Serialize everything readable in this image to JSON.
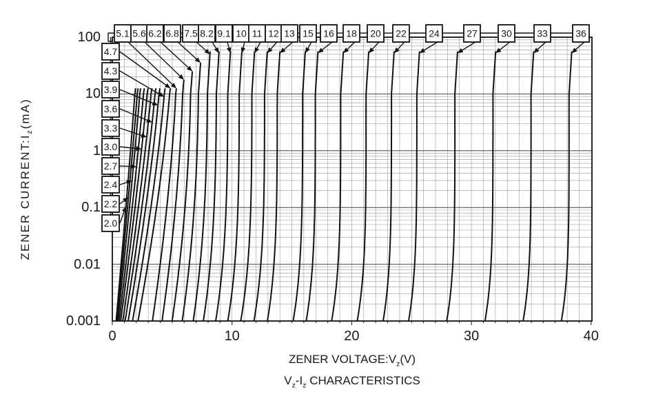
{
  "title_parts": [
    {
      "t": "V"
    },
    {
      "t": "z",
      "sub": true
    },
    {
      "t": "-I"
    },
    {
      "t": "z",
      "sub": true
    },
    {
      "t": " CHARACTERISTICS"
    }
  ],
  "title_plain": "Vz-Iz CHARACTERISTICS",
  "chart_data": {
    "type": "line",
    "xlabel_parts": [
      {
        "t": "ZENER VOLTAGE:V"
      },
      {
        "t": "z",
        "sub": true
      },
      {
        "t": "(V)"
      }
    ],
    "xlabel_plain": "ZENER VOLTAGE:Vz(V)",
    "ylabel_parts": [
      {
        "t": "ZENER CURRENT:I"
      },
      {
        "t": "z",
        "sub": true
      },
      {
        "t": "(mA)"
      }
    ],
    "ylabel_plain": "ZENER CURRENT:Iz(mA)",
    "x_ticks": [
      "0",
      "10",
      "20",
      "30",
      "40"
    ],
    "x_tick_values": [
      0,
      10,
      20,
      30,
      40
    ],
    "y_ticks": [
      "100",
      "10",
      "1",
      "0.1",
      "0.01",
      "0.001"
    ],
    "y_tick_values": [
      100,
      10,
      1,
      0.1,
      0.01,
      0.001
    ],
    "x_range_V": [
      0,
      40
    ],
    "y_range_mA": [
      0.001,
      100
    ],
    "y_scale": "log",
    "grid": "on",
    "series_note": "Each curve is the reverse V-I characteristic of one zener voltage rating; vz = nominal zener voltage (V), vmin_frac = fraction of vz reached at 1 uA, knee = knee sharpness exponent, tmax = log10 of max plotted current (mA), side/pos = callout label box position (px), at = log10 current (mA) where the callout arrow touches the curve",
    "series": [
      {
        "label": "2.0",
        "vz": 2.0,
        "vmin_frac": 0.15,
        "knee": 1.1,
        "tmax": 1.12,
        "side": "left",
        "pos": 324,
        "at": -0.98
      },
      {
        "label": "2.2",
        "vz": 2.2,
        "vmin_frac": 0.16,
        "knee": 1.12,
        "tmax": 1.12,
        "side": "left",
        "pos": 296,
        "at": -0.82
      },
      {
        "label": "2.4",
        "vz": 2.4,
        "vmin_frac": 0.18,
        "knee": 1.15,
        "tmax": 1.12,
        "side": "left",
        "pos": 268,
        "at": -0.53
      },
      {
        "label": "2.7",
        "vz": 2.7,
        "vmin_frac": 0.2,
        "knee": 1.18,
        "tmax": 1.12,
        "side": "left",
        "pos": 241,
        "at": -0.28
      },
      {
        "label": "3.0",
        "vz": 3.0,
        "vmin_frac": 0.22,
        "knee": 1.2,
        "tmax": 1.12,
        "side": "left",
        "pos": 213,
        "at": 0.03
      },
      {
        "label": "3.3",
        "vz": 3.3,
        "vmin_frac": 0.25,
        "knee": 1.25,
        "tmax": 1.12,
        "side": "left",
        "pos": 186,
        "at": 0.24
      },
      {
        "label": "3.6",
        "vz": 3.6,
        "vmin_frac": 0.28,
        "knee": 1.3,
        "tmax": 1.12,
        "side": "left",
        "pos": 158,
        "at": 0.5
      },
      {
        "label": "3.9",
        "vz": 3.9,
        "vmin_frac": 0.32,
        "knee": 1.35,
        "tmax": 1.12,
        "side": "left",
        "pos": 130,
        "at": 0.8
      },
      {
        "label": "4.3",
        "vz": 4.3,
        "vmin_frac": 0.37,
        "knee": 1.4,
        "tmax": 1.12,
        "side": "left",
        "pos": 103,
        "at": 0.95
      },
      {
        "label": "4.7",
        "vz": 4.7,
        "vmin_frac": 0.43,
        "knee": 1.45,
        "tmax": 1.12,
        "side": "left",
        "pos": 75,
        "at": 1.1
      },
      {
        "label": "5.1",
        "vz": 5.1,
        "vmin_frac": 0.62,
        "knee": 1.6,
        "tmax": 1.14,
        "side": "top",
        "pos": 178,
        "at": 1.1
      },
      {
        "label": "5.6",
        "vz": 5.6,
        "vmin_frac": 0.7,
        "knee": 1.8,
        "tmax": 1.28,
        "side": "top",
        "pos": 202,
        "at": 1.25
      },
      {
        "label": "6.2",
        "vz": 6.2,
        "vmin_frac": 0.76,
        "knee": 2.1,
        "tmax": 1.43,
        "side": "top",
        "pos": 225,
        "at": 1.4
      },
      {
        "label": "6.8",
        "vz": 6.8,
        "vmin_frac": 0.81,
        "knee": 2.4,
        "tmax": 1.58,
        "side": "top",
        "pos": 250,
        "at": 1.55
      },
      {
        "label": "7.5",
        "vz": 7.5,
        "vmin_frac": 0.85,
        "knee": 2.8,
        "tmax": 1.75,
        "side": "top",
        "pos": 277,
        "at": 1.7
      },
      {
        "label": "8.2",
        "vz": 8.2,
        "vmin_frac": 0.875,
        "knee": 3.2,
        "tmax": 1.75,
        "side": "top",
        "pos": 300,
        "at": 1.72
      },
      {
        "label": "9.1",
        "vz": 9.1,
        "vmin_frac": 0.895,
        "knee": 3.6,
        "tmax": 1.75,
        "side": "top",
        "pos": 325,
        "at": 1.72
      },
      {
        "label": "10",
        "vz": 10,
        "vmin_frac": 0.91,
        "knee": 4.0,
        "tmax": 1.75,
        "side": "top",
        "pos": 350,
        "at": 1.72
      },
      {
        "label": "11",
        "vz": 11,
        "vmin_frac": 0.92,
        "knee": 4.2,
        "tmax": 1.75,
        "side": "top",
        "pos": 373,
        "at": 1.72
      },
      {
        "label": "12",
        "vz": 12,
        "vmin_frac": 0.93,
        "knee": 4.4,
        "tmax": 1.75,
        "side": "top",
        "pos": 397,
        "at": 1.72
      },
      {
        "label": "13",
        "vz": 13,
        "vmin_frac": 0.94,
        "knee": 4.6,
        "tmax": 1.75,
        "side": "top",
        "pos": 420,
        "at": 1.72
      },
      {
        "label": "15",
        "vz": 15,
        "vmin_frac": 0.95,
        "knee": 4.9,
        "tmax": 1.75,
        "side": "top",
        "pos": 447,
        "at": 1.72
      },
      {
        "label": "16",
        "vz": 16,
        "vmin_frac": 0.955,
        "knee": 5.0,
        "tmax": 1.75,
        "side": "top",
        "pos": 477,
        "at": 1.72
      },
      {
        "label": "18",
        "vz": 18,
        "vmin_frac": 0.96,
        "knee": 5.2,
        "tmax": 1.75,
        "side": "top",
        "pos": 510,
        "at": 1.72
      },
      {
        "label": "20",
        "vz": 20,
        "vmin_frac": 0.965,
        "knee": 5.4,
        "tmax": 1.75,
        "side": "top",
        "pos": 545,
        "at": 1.72
      },
      {
        "label": "22",
        "vz": 22,
        "vmin_frac": 0.97,
        "knee": 5.5,
        "tmax": 1.75,
        "side": "top",
        "pos": 582,
        "at": 1.72
      },
      {
        "label": "24",
        "vz": 24,
        "vmin_frac": 0.973,
        "knee": 5.6,
        "tmax": 1.75,
        "side": "top",
        "pos": 630,
        "at": 1.72
      },
      {
        "label": "27",
        "vz": 27,
        "vmin_frac": 0.976,
        "knee": 5.8,
        "tmax": 1.75,
        "side": "top",
        "pos": 685,
        "at": 1.72
      },
      {
        "label": "30",
        "vz": 30,
        "vmin_frac": 0.979,
        "knee": 5.9,
        "tmax": 1.75,
        "side": "top",
        "pos": 735,
        "at": 1.72
      },
      {
        "label": "33",
        "vz": 33,
        "vmin_frac": 0.981,
        "knee": 6.0,
        "tmax": 1.75,
        "side": "top",
        "pos": 787,
        "at": 1.72
      },
      {
        "label": "36",
        "vz": 36,
        "vmin_frac": 0.983,
        "knee": 6.1,
        "tmax": 1.75,
        "side": "top",
        "pos": 843,
        "at": 1.72
      }
    ],
    "colors": {
      "curve": "#111111",
      "grid_minor": "#9a9a9a",
      "grid_major": "#444444",
      "frame": "#111111",
      "box_fill": "#ffffff",
      "box_border": "#111111",
      "text": "#1a1a1a"
    }
  }
}
